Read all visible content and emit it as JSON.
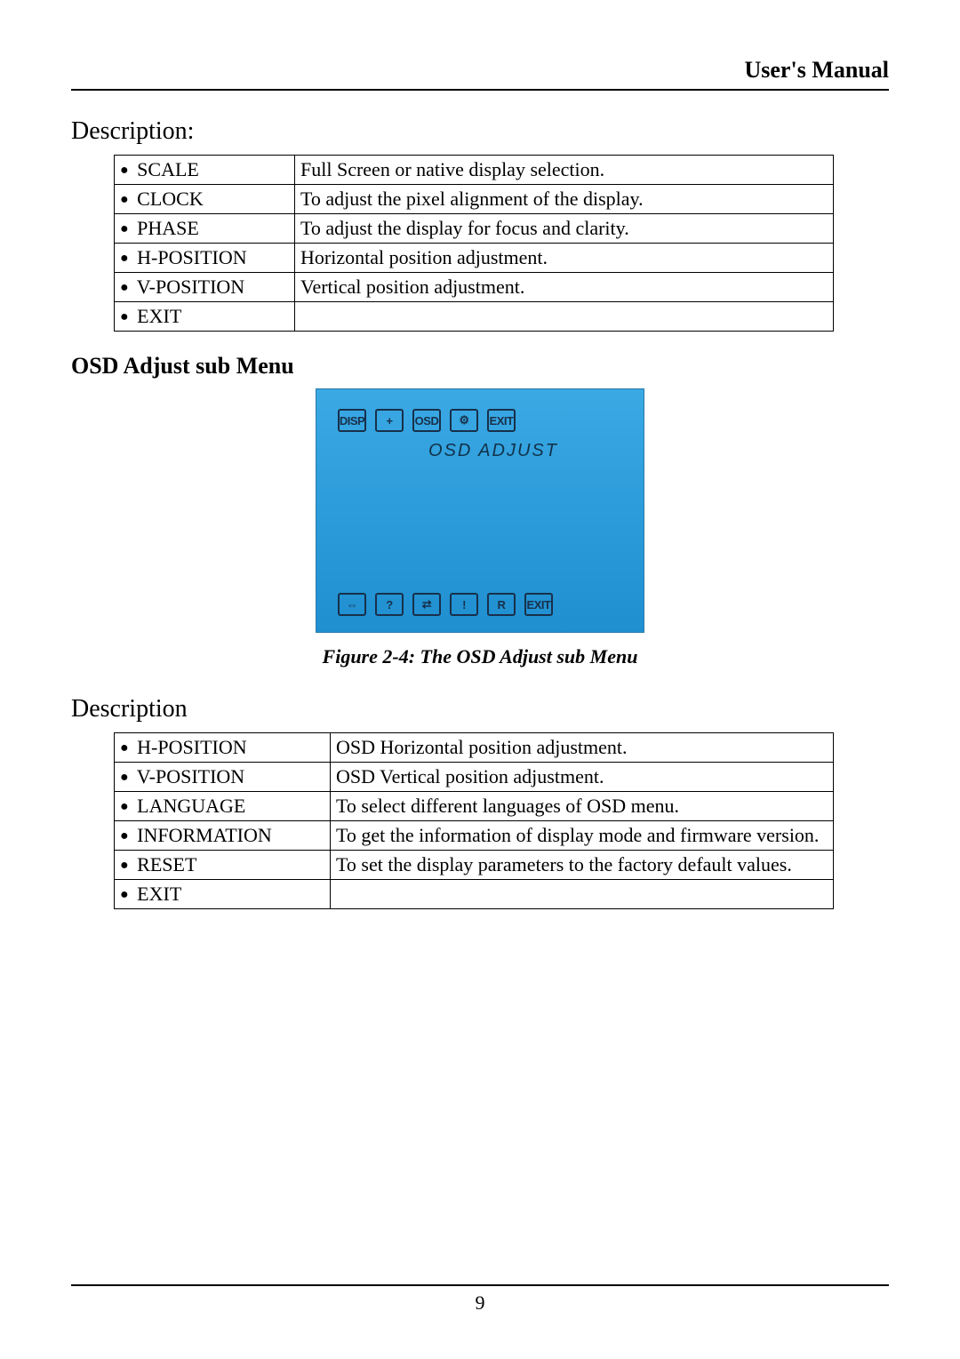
{
  "header": {
    "title": "User's Manual"
  },
  "description1": {
    "heading": "Description:",
    "rows": [
      {
        "label": "SCALE",
        "desc": "Full Screen or native display selection."
      },
      {
        "label": "CLOCK",
        "desc": "To adjust the pixel alignment of the display."
      },
      {
        "label": "PHASE",
        "desc": "To adjust the display for focus and clarity."
      },
      {
        "label": "H-POSITION",
        "desc": "Horizontal position adjustment."
      },
      {
        "label": "V-POSITION",
        "desc": "Vertical position adjustment."
      },
      {
        "label": "EXIT",
        "desc": ""
      }
    ]
  },
  "osd_section": {
    "heading": "OSD Adjust sub Menu",
    "screen_title": "OSD ADJUST",
    "top_icons": [
      "DISP",
      "+",
      "OSD",
      "⚙",
      "EXIT"
    ],
    "bottom_icons": [
      "⇔",
      "?",
      "⇄",
      "!",
      "R",
      "EXIT"
    ],
    "caption": "Figure 2-4: The OSD Adjust sub Menu",
    "colors": {
      "bg_top": "#3aa9e4",
      "bg_bottom": "#1f8fd0",
      "icon_border": "#18304a",
      "title_color": "#12324a"
    }
  },
  "description2": {
    "heading": "Description",
    "rows": [
      {
        "label": "H-POSITION",
        "desc": "OSD Horizontal position adjustment."
      },
      {
        "label": "V-POSITION",
        "desc": "OSD Vertical position adjustment."
      },
      {
        "label": "LANGUAGE",
        "desc": "To select different languages of OSD menu."
      },
      {
        "label": "INFORMATION",
        "desc": "To get the information of display mode and firmware version."
      },
      {
        "label": "RESET",
        "desc": "To set the display parameters to the factory default values."
      },
      {
        "label": "EXIT",
        "desc": ""
      }
    ]
  },
  "footer": {
    "page_number": "9"
  }
}
